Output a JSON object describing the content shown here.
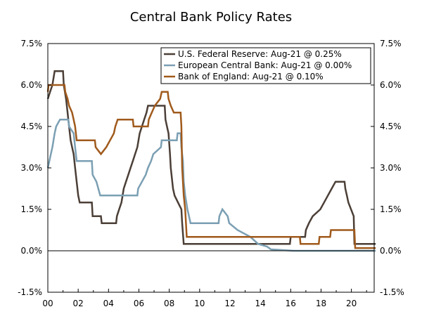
{
  "chart_data": {
    "type": "line",
    "title": "Central Bank Policy Rates",
    "xlabel": "",
    "ylabel": "",
    "xlim": [
      2000,
      2021.5
    ],
    "ylim": [
      -1.5,
      7.5
    ],
    "x_ticks": [
      {
        "value": 2000,
        "label": "00"
      },
      {
        "value": 2002,
        "label": "02"
      },
      {
        "value": 2004,
        "label": "04"
      },
      {
        "value": 2006,
        "label": "06"
      },
      {
        "value": 2008,
        "label": "08"
      },
      {
        "value": 2010,
        "label": "10"
      },
      {
        "value": 2012,
        "label": "12"
      },
      {
        "value": 2014,
        "label": "14"
      },
      {
        "value": 2016,
        "label": "16"
      },
      {
        "value": 2018,
        "label": "18"
      },
      {
        "value": 2020,
        "label": "20"
      }
    ],
    "y_ticks": [
      {
        "value": 7.5,
        "label": "7.5%"
      },
      {
        "value": 6.0,
        "label": "6.0%"
      },
      {
        "value": 4.5,
        "label": "4.5%"
      },
      {
        "value": 3.0,
        "label": "3.0%"
      },
      {
        "value": 1.5,
        "label": "1.5%"
      },
      {
        "value": 0.0,
        "label": "0.0%"
      },
      {
        "value": -1.5,
        "label": "-1.5%"
      }
    ],
    "legend_position": "top-right",
    "series": [
      {
        "name": "U.S. Federal Reserve: Aug-21 @ 0.25%",
        "color": "#4b3f37",
        "points": [
          [
            2000.0,
            5.5
          ],
          [
            2000.15,
            5.75
          ],
          [
            2000.3,
            6.0
          ],
          [
            2000.45,
            6.5
          ],
          [
            2001.0,
            6.5
          ],
          [
            2001.05,
            6.0
          ],
          [
            2001.2,
            5.5
          ],
          [
            2001.3,
            5.0
          ],
          [
            2001.4,
            4.5
          ],
          [
            2001.5,
            4.0
          ],
          [
            2001.6,
            3.75
          ],
          [
            2001.7,
            3.5
          ],
          [
            2001.8,
            3.0
          ],
          [
            2001.9,
            2.5
          ],
          [
            2002.0,
            2.0
          ],
          [
            2002.1,
            1.75
          ],
          [
            2002.9,
            1.75
          ],
          [
            2002.95,
            1.25
          ],
          [
            2003.5,
            1.25
          ],
          [
            2003.55,
            1.0
          ],
          [
            2004.5,
            1.0
          ],
          [
            2004.55,
            1.25
          ],
          [
            2004.7,
            1.5
          ],
          [
            2004.85,
            1.75
          ],
          [
            2005.0,
            2.25
          ],
          [
            2005.15,
            2.5
          ],
          [
            2005.3,
            2.75
          ],
          [
            2005.45,
            3.0
          ],
          [
            2005.6,
            3.25
          ],
          [
            2005.75,
            3.5
          ],
          [
            2005.9,
            3.75
          ],
          [
            2006.05,
            4.25
          ],
          [
            2006.2,
            4.5
          ],
          [
            2006.35,
            4.75
          ],
          [
            2006.5,
            5.0
          ],
          [
            2006.6,
            5.25
          ],
          [
            2007.7,
            5.25
          ],
          [
            2007.75,
            4.75
          ],
          [
            2007.85,
            4.5
          ],
          [
            2007.95,
            4.25
          ],
          [
            2008.05,
            3.5
          ],
          [
            2008.1,
            3.0
          ],
          [
            2008.25,
            2.25
          ],
          [
            2008.35,
            2.0
          ],
          [
            2008.8,
            1.5
          ],
          [
            2008.85,
            1.0
          ],
          [
            2008.95,
            0.25
          ],
          [
            2015.95,
            0.25
          ],
          [
            2016.0,
            0.5
          ],
          [
            2016.95,
            0.5
          ],
          [
            2017.0,
            0.75
          ],
          [
            2017.2,
            1.0
          ],
          [
            2017.45,
            1.25
          ],
          [
            2017.95,
            1.5
          ],
          [
            2018.2,
            1.75
          ],
          [
            2018.45,
            2.0
          ],
          [
            2018.7,
            2.25
          ],
          [
            2018.95,
            2.5
          ],
          [
            2019.55,
            2.5
          ],
          [
            2019.6,
            2.25
          ],
          [
            2019.7,
            2.0
          ],
          [
            2019.8,
            1.75
          ],
          [
            2020.15,
            1.25
          ],
          [
            2020.2,
            0.25
          ],
          [
            2021.6,
            0.25
          ]
        ]
      },
      {
        "name": "European Central Bank: Aug-21 @ 0.00%",
        "color": "#7b9fb3",
        "points": [
          [
            2000.0,
            3.0
          ],
          [
            2000.1,
            3.25
          ],
          [
            2000.2,
            3.5
          ],
          [
            2000.3,
            3.75
          ],
          [
            2000.45,
            4.25
          ],
          [
            2000.55,
            4.5
          ],
          [
            2000.8,
            4.75
          ],
          [
            2001.35,
            4.75
          ],
          [
            2001.4,
            4.5
          ],
          [
            2001.7,
            4.25
          ],
          [
            2001.8,
            3.75
          ],
          [
            2001.9,
            3.25
          ],
          [
            2002.9,
            3.25
          ],
          [
            2002.95,
            2.75
          ],
          [
            2003.2,
            2.5
          ],
          [
            2003.45,
            2.0
          ],
          [
            2005.9,
            2.0
          ],
          [
            2005.95,
            2.25
          ],
          [
            2006.2,
            2.5
          ],
          [
            2006.45,
            2.75
          ],
          [
            2006.6,
            3.0
          ],
          [
            2006.8,
            3.25
          ],
          [
            2006.95,
            3.5
          ],
          [
            2007.45,
            3.75
          ],
          [
            2007.5,
            4.0
          ],
          [
            2008.5,
            4.0
          ],
          [
            2008.55,
            4.25
          ],
          [
            2008.75,
            4.25
          ],
          [
            2008.8,
            3.75
          ],
          [
            2008.9,
            3.25
          ],
          [
            2008.95,
            2.5
          ],
          [
            2009.05,
            2.0
          ],
          [
            2009.2,
            1.5
          ],
          [
            2009.3,
            1.25
          ],
          [
            2009.4,
            1.0
          ],
          [
            2011.25,
            1.0
          ],
          [
            2011.3,
            1.25
          ],
          [
            2011.5,
            1.5
          ],
          [
            2011.85,
            1.25
          ],
          [
            2011.95,
            1.0
          ],
          [
            2012.5,
            0.75
          ],
          [
            2013.35,
            0.5
          ],
          [
            2013.85,
            0.25
          ],
          [
            2014.45,
            0.15
          ],
          [
            2014.7,
            0.05
          ],
          [
            2016.2,
            0.0
          ],
          [
            2021.6,
            0.0
          ]
        ]
      },
      {
        "name": "Bank of England: Aug-21 @ 0.10%",
        "color": "#a05a1c",
        "points": [
          [
            2000.0,
            5.75
          ],
          [
            2000.05,
            6.0
          ],
          [
            2001.1,
            6.0
          ],
          [
            2001.15,
            5.75
          ],
          [
            2001.3,
            5.5
          ],
          [
            2001.4,
            5.25
          ],
          [
            2001.6,
            5.0
          ],
          [
            2001.7,
            4.75
          ],
          [
            2001.8,
            4.5
          ],
          [
            2001.9,
            4.0
          ],
          [
            2003.1,
            4.0
          ],
          [
            2003.15,
            3.75
          ],
          [
            2003.5,
            3.5
          ],
          [
            2003.85,
            3.75
          ],
          [
            2004.1,
            4.0
          ],
          [
            2004.35,
            4.25
          ],
          [
            2004.45,
            4.5
          ],
          [
            2004.6,
            4.75
          ],
          [
            2005.6,
            4.75
          ],
          [
            2005.65,
            4.5
          ],
          [
            2006.6,
            4.5
          ],
          [
            2006.65,
            4.75
          ],
          [
            2006.85,
            5.0
          ],
          [
            2007.05,
            5.25
          ],
          [
            2007.4,
            5.5
          ],
          [
            2007.5,
            5.75
          ],
          [
            2007.9,
            5.75
          ],
          [
            2007.95,
            5.5
          ],
          [
            2008.1,
            5.25
          ],
          [
            2008.3,
            5.0
          ],
          [
            2008.75,
            5.0
          ],
          [
            2008.8,
            4.5
          ],
          [
            2008.85,
            3.0
          ],
          [
            2008.95,
            2.0
          ],
          [
            2009.05,
            1.5
          ],
          [
            2009.1,
            1.0
          ],
          [
            2009.15,
            0.5
          ],
          [
            2016.6,
            0.5
          ],
          [
            2016.65,
            0.25
          ],
          [
            2017.85,
            0.25
          ],
          [
            2017.9,
            0.5
          ],
          [
            2018.6,
            0.5
          ],
          [
            2018.65,
            0.75
          ],
          [
            2020.2,
            0.75
          ],
          [
            2020.25,
            0.1
          ],
          [
            2021.6,
            0.1
          ]
        ]
      }
    ]
  }
}
